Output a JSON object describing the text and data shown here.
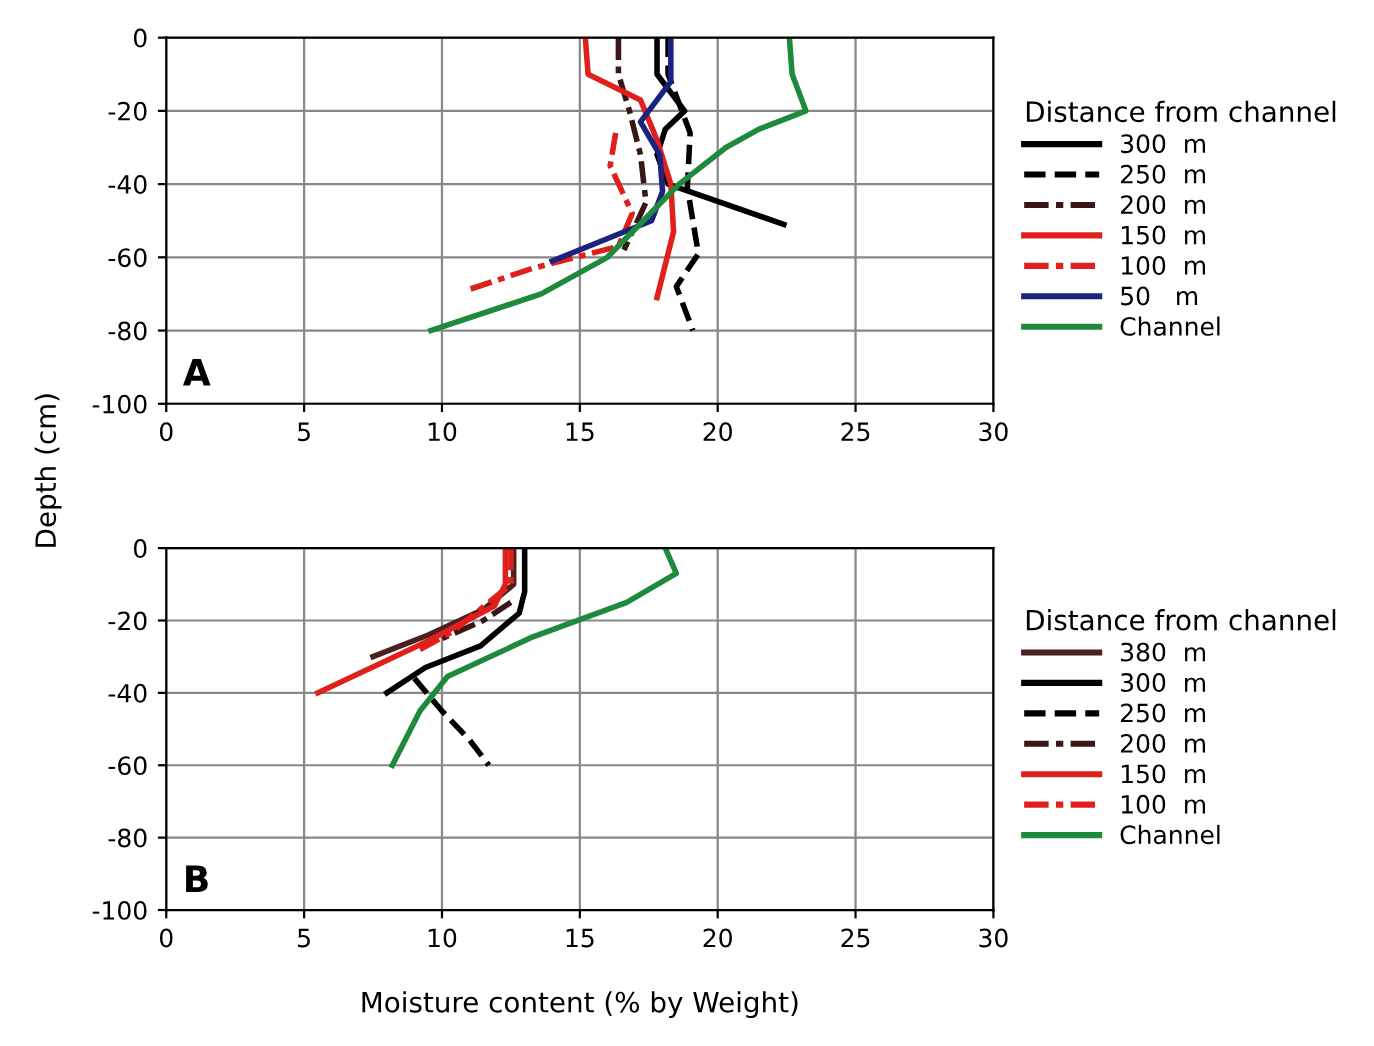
{
  "chart_data": [
    {
      "type": "line",
      "ylabel": "Depth (cm)",
      "legend_title": "Distance from channel",
      "legend": "right",
      "grid": true,
      "xlim": [
        0,
        30
      ],
      "xticks": [
        0,
        5,
        10,
        15,
        20,
        25,
        30
      ],
      "ylim": [
        -100,
        0
      ],
      "yticks": [
        -100,
        -80,
        -60,
        -40,
        -20,
        0
      ],
      "annotations": [
        "A"
      ],
      "series": [
        {
          "name": "300  m",
          "color": "#000000",
          "line_style": "solid",
          "x": [
            17.8,
            17.8,
            18.8,
            18.1,
            17.8,
            18.2,
            22.4
          ],
          "values": [
            0,
            -10,
            -20,
            -25,
            -32,
            -40,
            -51
          ]
        },
        {
          "name": "250  m",
          "color": "#000000",
          "line_style": "dashed",
          "x": [
            18.2,
            18.2,
            19.0,
            18.9,
            19.3,
            18.5,
            19.1
          ],
          "values": [
            0,
            -10,
            -26,
            -41,
            -59,
            -68,
            -80
          ]
        },
        {
          "name": "200  m",
          "color": "#3a1616",
          "line_style": "dashdot",
          "x": [
            16.4,
            16.4,
            16.8,
            17.2,
            17.4,
            16.6
          ],
          "values": [
            0,
            -10,
            -20,
            -32,
            -45,
            -58
          ]
        },
        {
          "name": "150  m",
          "color": "#e0201c",
          "line_style": "solid",
          "x": [
            15.2,
            15.3,
            17.2,
            17.8,
            18.3,
            18.4,
            17.8
          ],
          "values": [
            0,
            -10,
            -17,
            -28,
            -40,
            -53,
            -71
          ]
        },
        {
          "name": "100  m",
          "color": "#e0201c",
          "line_style": "dashdot",
          "x": [
            16.3,
            16.1,
            16.9,
            16.4,
            13.3,
            10.9
          ],
          "values": [
            -26,
            -35,
            -48,
            -57,
            -63,
            -69
          ]
        },
        {
          "name": "50   m",
          "color": "#1a237e",
          "line_style": "solid",
          "x": [
            18.3,
            18.3,
            17.2,
            17.9,
            18.0,
            17.6,
            14.0
          ],
          "values": [
            0,
            -12,
            -23,
            -32,
            -42,
            -50,
            -61
          ]
        },
        {
          "name": "Channel",
          "color": "#1e8a3e",
          "line_style": "solid",
          "x": [
            22.6,
            22.7,
            23.2,
            21.5,
            20.3,
            18.6,
            17.3,
            16.0,
            13.6,
            9.6
          ],
          "values": [
            0,
            -10,
            -20,
            -25,
            -30,
            -40,
            -50,
            -60,
            -70,
            -80
          ]
        }
      ]
    },
    {
      "type": "line",
      "xlabel": "Moisture content (% by Weight)",
      "legend_title": "Distance from channel",
      "legend": "right",
      "grid": true,
      "xlim": [
        0,
        30
      ],
      "xticks": [
        0,
        5,
        10,
        15,
        20,
        25,
        30
      ],
      "ylim": [
        -100,
        0
      ],
      "yticks": [
        -100,
        -80,
        -60,
        -40,
        -20,
        0
      ],
      "annotations": [
        "B"
      ],
      "series": [
        {
          "name": "380  m",
          "color": "#4a2020",
          "line_style": "solid",
          "x": [
            12.6,
            12.6,
            11.5,
            9.5,
            7.5
          ],
          "values": [
            0,
            -10,
            -17,
            -24,
            -30
          ]
        },
        {
          "name": "300  m",
          "color": "#000000",
          "line_style": "solid",
          "x": [
            13.0,
            13.0,
            12.8,
            11.4,
            9.4,
            8.0
          ],
          "values": [
            0,
            -12,
            -18,
            -27,
            -33,
            -40
          ]
        },
        {
          "name": "250  m",
          "color": "#000000",
          "line_style": "dashed",
          "x": [
            9.0,
            10.0,
            11.0,
            11.7
          ],
          "values": [
            -36,
            -45,
            -53,
            -60
          ]
        },
        {
          "name": "200  m",
          "color": "#3a1616",
          "line_style": "dashdot",
          "x": [
            12.5,
            11.5,
            10.0
          ],
          "values": [
            -15,
            -20,
            -25
          ]
        },
        {
          "name": "150  m",
          "color": "#e0201c",
          "line_style": "solid",
          "x": [
            12.3,
            12.3,
            11.9,
            9.4,
            5.5
          ],
          "values": [
            0,
            -10,
            -16,
            -26,
            -40
          ]
        },
        {
          "name": "100  m",
          "color": "#e0201c",
          "line_style": "dashdot",
          "x": [
            12.5,
            12.5,
            11.7,
            10.4,
            9.2
          ],
          "values": [
            0,
            -10,
            -15,
            -23,
            -28
          ]
        },
        {
          "name": "Channel",
          "color": "#1e8a3e",
          "line_style": "solid",
          "x": [
            18.1,
            18.5,
            16.7,
            13.3,
            10.2,
            9.2,
            8.2
          ],
          "values": [
            0,
            -7,
            -15,
            -24.5,
            -35.5,
            -45,
            -60
          ]
        }
      ]
    }
  ]
}
